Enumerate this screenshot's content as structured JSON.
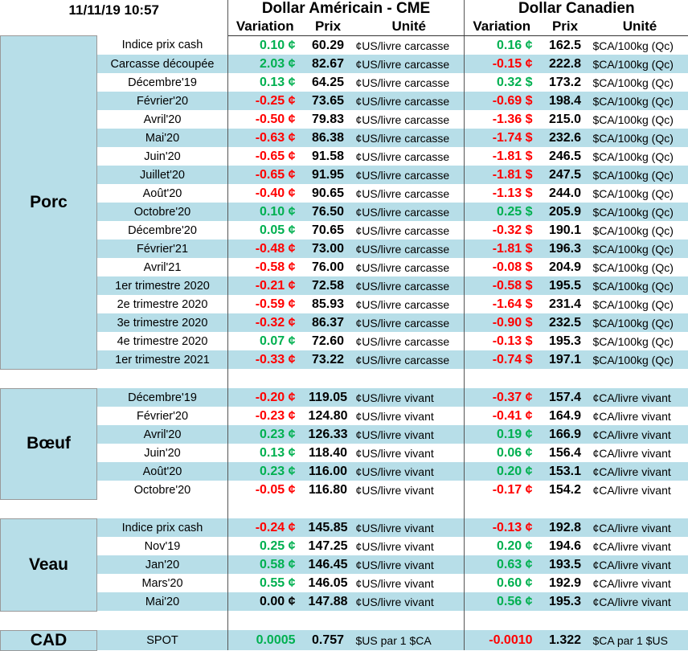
{
  "header": {
    "timestamp": "11/11/19 10:57",
    "groups": [
      "Dollar Américain - CME",
      "Dollar Canadien"
    ],
    "columns": [
      "Variation",
      "Prix",
      "Unité",
      "Variation",
      "Prix",
      "Unité"
    ]
  },
  "sections": [
    {
      "label": "Porc",
      "rows": [
        [
          "Indice prix cash",
          "0.10 ¢",
          "60.29",
          "¢US/livre carcasse",
          "0.16 ¢",
          "162.5",
          "$CA/100kg (Qc)"
        ],
        [
          "Carcasse découpée",
          "2.03 ¢",
          "82.67",
          "¢US/livre carcasse",
          "-0.15 ¢",
          "222.8",
          "$CA/100kg (Qc)"
        ],
        [
          "Décembre'19",
          "0.13 ¢",
          "64.25",
          "¢US/livre carcasse",
          "0.32 $",
          "173.2",
          "$CA/100kg (Qc)"
        ],
        [
          "Février'20",
          "-0.25 ¢",
          "73.65",
          "¢US/livre carcasse",
          "-0.69 $",
          "198.4",
          "$CA/100kg (Qc)"
        ],
        [
          "Avril'20",
          "-0.50 ¢",
          "79.83",
          "¢US/livre carcasse",
          "-1.36 $",
          "215.0",
          "$CA/100kg (Qc)"
        ],
        [
          "Mai'20",
          "-0.63 ¢",
          "86.38",
          "¢US/livre carcasse",
          "-1.74 $",
          "232.6",
          "$CA/100kg (Qc)"
        ],
        [
          "Juin'20",
          "-0.65 ¢",
          "91.58",
          "¢US/livre carcasse",
          "-1.81 $",
          "246.5",
          "$CA/100kg (Qc)"
        ],
        [
          "Juillet'20",
          "-0.65 ¢",
          "91.95",
          "¢US/livre carcasse",
          "-1.81 $",
          "247.5",
          "$CA/100kg (Qc)"
        ],
        [
          "Août'20",
          "-0.40 ¢",
          "90.65",
          "¢US/livre carcasse",
          "-1.13 $",
          "244.0",
          "$CA/100kg (Qc)"
        ],
        [
          "Octobre'20",
          "0.10 ¢",
          "76.50",
          "¢US/livre carcasse",
          "0.25 $",
          "205.9",
          "$CA/100kg (Qc)"
        ],
        [
          "Décembre'20",
          "0.05 ¢",
          "70.65",
          "¢US/livre carcasse",
          "-0.32 $",
          "190.1",
          "$CA/100kg (Qc)"
        ],
        [
          "Février'21",
          "-0.48 ¢",
          "73.00",
          "¢US/livre carcasse",
          "-1.81 $",
          "196.3",
          "$CA/100kg (Qc)"
        ],
        [
          "Avril'21",
          "-0.58 ¢",
          "76.00",
          "¢US/livre carcasse",
          "-0.08 $",
          "204.9",
          "$CA/100kg (Qc)"
        ],
        [
          "1er trimestre 2020",
          "-0.21 ¢",
          "72.58",
          "¢US/livre carcasse",
          "-0.58 $",
          "195.5",
          "$CA/100kg (Qc)"
        ],
        [
          "2e trimestre 2020",
          "-0.59 ¢",
          "85.93",
          "¢US/livre carcasse",
          "-1.64 $",
          "231.4",
          "$CA/100kg (Qc)"
        ],
        [
          "3e trimestre 2020",
          "-0.32 ¢",
          "86.37",
          "¢US/livre carcasse",
          "-0.90 $",
          "232.5",
          "$CA/100kg (Qc)"
        ],
        [
          "4e trimestre 2020",
          "0.07 ¢",
          "72.60",
          "¢US/livre carcasse",
          "-0.13 $",
          "195.3",
          "$CA/100kg (Qc)"
        ],
        [
          "1er trimestre 2021",
          "-0.33 ¢",
          "73.22",
          "¢US/livre carcasse",
          "-0.74 $",
          "197.1",
          "$CA/100kg (Qc)"
        ]
      ]
    },
    {
      "label": "Bœuf",
      "rows": [
        [
          "Décembre'19",
          "-0.20 ¢",
          "119.05",
          "¢US/livre vivant",
          "-0.37 ¢",
          "157.4",
          "¢CA/livre vivant"
        ],
        [
          "Février'20",
          "-0.23 ¢",
          "124.80",
          "¢US/livre vivant",
          "-0.41 ¢",
          "164.9",
          "¢CA/livre vivant"
        ],
        [
          "Avril'20",
          "0.23 ¢",
          "126.33",
          "¢US/livre vivant",
          "0.19 ¢",
          "166.9",
          "¢CA/livre vivant"
        ],
        [
          "Juin'20",
          "0.13 ¢",
          "118.40",
          "¢US/livre vivant",
          "0.06 ¢",
          "156.4",
          "¢CA/livre vivant"
        ],
        [
          "Août'20",
          "0.23 ¢",
          "116.00",
          "¢US/livre vivant",
          "0.20 ¢",
          "153.1",
          "¢CA/livre vivant"
        ],
        [
          "Octobre'20",
          "-0.05 ¢",
          "116.80",
          "¢US/livre vivant",
          "-0.17 ¢",
          "154.2",
          "¢CA/livre vivant"
        ]
      ]
    },
    {
      "label": "Veau",
      "rows": [
        [
          "Indice prix cash",
          "-0.24 ¢",
          "145.85",
          "¢US/livre vivant",
          "-0.13 ¢",
          "192.8",
          "¢CA/livre vivant"
        ],
        [
          "Nov'19",
          "0.25 ¢",
          "147.25",
          "¢US/livre vivant",
          "0.20 ¢",
          "194.6",
          "¢CA/livre vivant"
        ],
        [
          "Jan'20",
          "0.58 ¢",
          "146.45",
          "¢US/livre vivant",
          "0.63 ¢",
          "193.5",
          "¢CA/livre vivant"
        ],
        [
          "Mars'20",
          "0.55 ¢",
          "146.05",
          "¢US/livre vivant",
          "0.60 ¢",
          "192.9",
          "¢CA/livre vivant"
        ],
        [
          "Mai'20",
          "0.00 ¢",
          "147.88",
          "¢US/livre vivant",
          "0.56 ¢",
          "195.3",
          "¢CA/livre vivant"
        ]
      ]
    },
    {
      "label": "CAD",
      "rows": [
        [
          "SPOT",
          "0.0005",
          "0.757",
          "$US par 1 $CA",
          "-0.0010",
          "1.322",
          "$CA par 1 $US"
        ]
      ]
    }
  ]
}
